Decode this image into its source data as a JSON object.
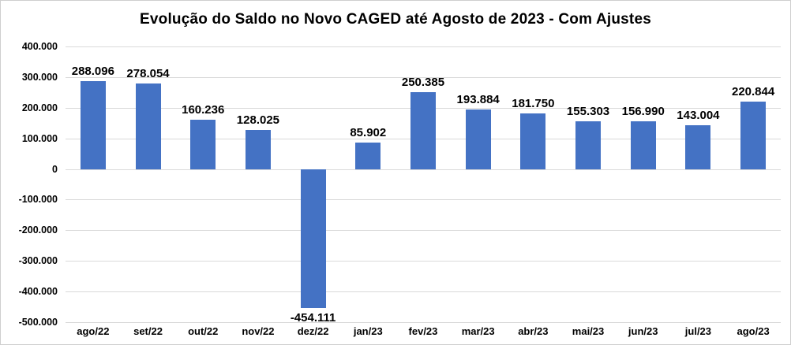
{
  "chart_data": {
    "type": "bar",
    "title": "Evolução do Saldo no Novo CAGED até Agosto de 2023 - Com Ajustes",
    "categories": [
      "ago/22",
      "set/22",
      "out/22",
      "nov/22",
      "dez/22",
      "jan/23",
      "fev/23",
      "mar/23",
      "abr/23",
      "mai/23",
      "jun/23",
      "jul/23",
      "ago/23"
    ],
    "values": [
      288096,
      278054,
      160236,
      128025,
      -454111,
      85902,
      250385,
      193884,
      181750,
      155303,
      156990,
      143004,
      220844
    ],
    "labels": [
      "288.096",
      "278.054",
      "160.236",
      "128.025",
      "-454.111",
      "85.902",
      "250.385",
      "193.884",
      "181.750",
      "155.303",
      "156.990",
      "143.004",
      "220.844"
    ],
    "xlabel": "",
    "ylabel": "",
    "ylim": [
      -500000,
      400000
    ],
    "ytick_step": 100000,
    "ytick_labels": [
      "400.000",
      "300.000",
      "200.000",
      "100.000",
      "0",
      "-100.000",
      "-200.000",
      "-300.000",
      "-400.000",
      "-500.000"
    ],
    "grid": true,
    "legend": "none",
    "bar_color": "#4472C4"
  }
}
